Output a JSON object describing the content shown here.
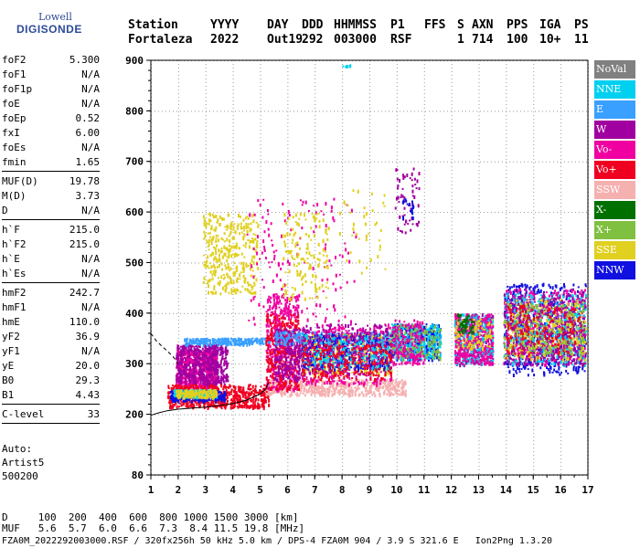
{
  "logo": {
    "line1": "Lowell",
    "line2": "DIGISONDE"
  },
  "header": {
    "row1": [
      "Station",
      "YYYY",
      "DAY",
      "DDD",
      "HHMMSS",
      "P1",
      "FFS",
      "S",
      "AXN",
      "PPS",
      "IGA",
      "PS"
    ],
    "row2": [
      "Fortaleza",
      "2022",
      "Out19",
      "292",
      "003000",
      "RSF",
      "",
      "1",
      "714",
      "100",
      "10+",
      "11"
    ]
  },
  "params_group1": [
    {
      "label": "foF2",
      "value": "5.300"
    },
    {
      "label": "foF1",
      "value": "N/A"
    },
    {
      "label": "foF1p",
      "value": "N/A"
    },
    {
      "label": "foE",
      "value": "N/A"
    },
    {
      "label": "foEp",
      "value": "0.52"
    },
    {
      "label": "fxI",
      "value": "6.00"
    },
    {
      "label": "foEs",
      "value": "N/A"
    },
    {
      "label": "fmin",
      "value": "1.65"
    }
  ],
  "params_group2": [
    {
      "label": "MUF(D)",
      "value": "19.78"
    },
    {
      "label": "M(D)",
      "value": "3.73"
    },
    {
      "label": "D",
      "value": "N/A"
    }
  ],
  "params_group3": [
    {
      "label": "h`F",
      "value": "215.0"
    },
    {
      "label": "h`F2",
      "value": "215.0"
    },
    {
      "label": "h`E",
      "value": "N/A"
    },
    {
      "label": "h`Es",
      "value": "N/A"
    }
  ],
  "params_group4": [
    {
      "label": "hmF2",
      "value": "242.7"
    },
    {
      "label": "hmF1",
      "value": "N/A"
    },
    {
      "label": "hmE",
      "value": "110.0"
    },
    {
      "label": "yF2",
      "value": "36.9"
    },
    {
      "label": "yF1",
      "value": "N/A"
    },
    {
      "label": "yE",
      "value": "20.0"
    },
    {
      "label": "B0",
      "value": "29.3"
    },
    {
      "label": "B1",
      "value": "4.43"
    }
  ],
  "params_group5": [
    {
      "label": "C-level",
      "value": "33"
    }
  ],
  "auto": {
    "line1": "Auto:",
    "line2": "Artist5",
    "line3": "500200"
  },
  "bottom": {
    "d_row": "D     100  200  400  600  800 1000 1500 3000 [km]",
    "muf_row": "MUF   5.6  5.7  6.0  6.6  7.3  8.4 11.5 19.8 [MHz]",
    "file_row": "FZA0M_2022292003000.RSF / 320fx256h 50 kHz 5.0 km / DPS-4 FZA0M 904 / 3.9 S 321.6 E   Ion2Png 1.3.20"
  },
  "legend": [
    {
      "label": "NoVal",
      "color": "#808080"
    },
    {
      "label": "NNE",
      "color": "#00d0f0"
    },
    {
      "label": "E",
      "color": "#3aa0ff"
    },
    {
      "label": "W",
      "color": "#a000a0"
    },
    {
      "label": "Vo-",
      "color": "#f000a0"
    },
    {
      "label": "Vo+",
      "color": "#f00020"
    },
    {
      "label": "SSW",
      "color": "#f5b0b0"
    },
    {
      "label": "X-",
      "color": "#007000"
    },
    {
      "label": "X+",
      "color": "#80c040"
    },
    {
      "label": "SSE",
      "color": "#e0d020"
    },
    {
      "label": "NNW",
      "color": "#1010e0"
    }
  ],
  "chart_data": {
    "type": "scatter",
    "title": "",
    "xlabel": "",
    "ylabel": "",
    "xlim": [
      1,
      17
    ],
    "ylim": [
      80,
      900
    ],
    "x_ticks": [
      1,
      2,
      3,
      4,
      5,
      6,
      7,
      8,
      9,
      10,
      11,
      12,
      13,
      14,
      15,
      16,
      17
    ],
    "y_ticks": [
      80,
      200,
      300,
      400,
      500,
      600,
      700,
      800,
      900
    ],
    "grid": true,
    "trace_profile": {
      "x": [
        1.0,
        1.3,
        1.6,
        2.0,
        2.5,
        3.0,
        3.5,
        4.0,
        4.5,
        5.0,
        5.2,
        5.3
      ],
      "y": [
        198,
        203,
        207,
        210,
        212,
        214,
        217,
        221,
        228,
        240,
        250,
        262
      ]
    },
    "upper_profile": {
      "x": [
        1.0,
        1.2,
        1.5,
        1.8,
        2.0
      ],
      "y": [
        360,
        345,
        330,
        315,
        300
      ]
    },
    "clusters": [
      {
        "color": "#f000a0",
        "x": [
          1.9,
          3.4
        ],
        "y": [
          255,
          330
        ],
        "n": 600
      },
      {
        "color": "#a000a0",
        "x": [
          1.9,
          3.8
        ],
        "y": [
          260,
          340
        ],
        "n": 500
      },
      {
        "color": "#f00020",
        "x": [
          1.6,
          5.3
        ],
        "y": [
          215,
          260
        ],
        "n": 550
      },
      {
        "color": "#1010e0",
        "x": [
          1.7,
          3.7
        ],
        "y": [
          228,
          248
        ],
        "n": 250
      },
      {
        "color": "#00d0f0",
        "x": [
          1.8,
          3.4
        ],
        "y": [
          236,
          250
        ],
        "n": 200
      },
      {
        "color": "#e0d020",
        "x": [
          1.9,
          3.4
        ],
        "y": [
          235,
          250
        ],
        "n": 160
      },
      {
        "color": "#3aa0ff",
        "x": [
          2.2,
          5.7
        ],
        "y": [
          340,
          352
        ],
        "n": 260
      },
      {
        "color": "#f5b0b0",
        "x": [
          5.2,
          10.3
        ],
        "y": [
          240,
          270
        ],
        "n": 500
      },
      {
        "color": "#e0d020",
        "x": [
          2.9,
          4.9
        ],
        "y": [
          440,
          600
        ],
        "n": 350
      },
      {
        "color": "#f000a0",
        "x": [
          5.2,
          6.4
        ],
        "y": [
          250,
          440
        ],
        "n": 400
      },
      {
        "color": "#f00020",
        "x": [
          5.2,
          6.4
        ],
        "y": [
          250,
          400
        ],
        "n": 300
      },
      {
        "color": "#a000a0",
        "x": [
          5.5,
          6.6
        ],
        "y": [
          270,
          370
        ],
        "n": 250
      },
      {
        "color": "#3aa0ff",
        "x": [
          5.5,
          9.8
        ],
        "y": [
          340,
          365
        ],
        "n": 300
      },
      {
        "color": "#f000a0",
        "x": [
          6.5,
          9.8
        ],
        "y": [
          260,
          380
        ],
        "n": 450
      },
      {
        "color": "#e0d020",
        "x": [
          6.5,
          9.8
        ],
        "y": [
          280,
          360
        ],
        "n": 350
      },
      {
        "color": "#1010e0",
        "x": [
          6.5,
          9.8
        ],
        "y": [
          290,
          360
        ],
        "n": 300
      },
      {
        "color": "#00d0f0",
        "x": [
          6.5,
          9.8
        ],
        "y": [
          290,
          360
        ],
        "n": 250
      },
      {
        "color": "#a000a0",
        "x": [
          6.5,
          9.8
        ],
        "y": [
          280,
          380
        ],
        "n": 250
      },
      {
        "color": "#f00020",
        "x": [
          6.5,
          9.8
        ],
        "y": [
          270,
          340
        ],
        "n": 200
      },
      {
        "color": "#1010e0",
        "x": [
          9.8,
          11.6
        ],
        "y": [
          310,
          380
        ],
        "n": 350
      },
      {
        "color": "#00d0f0",
        "x": [
          9.8,
          11.6
        ],
        "y": [
          310,
          380
        ],
        "n": 250
      },
      {
        "color": "#80c040",
        "x": [
          9.8,
          11.6
        ],
        "y": [
          310,
          380
        ],
        "n": 150
      },
      {
        "color": "#f000a0",
        "x": [
          9.8,
          11.0
        ],
        "y": [
          300,
          390
        ],
        "n": 150
      },
      {
        "color": "#a000a0",
        "x": [
          12.1,
          13.5
        ],
        "y": [
          300,
          400
        ],
        "n": 300
      },
      {
        "color": "#00d0f0",
        "x": [
          12.1,
          13.5
        ],
        "y": [
          300,
          400
        ],
        "n": 300
      },
      {
        "color": "#f000a0",
        "x": [
          12.1,
          13.5
        ],
        "y": [
          300,
          400
        ],
        "n": 300
      },
      {
        "color": "#e0d020",
        "x": [
          12.1,
          13.5
        ],
        "y": [
          330,
          390
        ],
        "n": 100
      },
      {
        "color": "#007000",
        "x": [
          12.2,
          12.8
        ],
        "y": [
          360,
          400
        ],
        "n": 50
      },
      {
        "color": "#1010e0",
        "x": [
          13.9,
          16.9
        ],
        "y": [
          280,
          460
        ],
        "n": 550
      },
      {
        "color": "#f000a0",
        "x": [
          13.9,
          16.9
        ],
        "y": [
          300,
          450
        ],
        "n": 500
      },
      {
        "color": "#00d0f0",
        "x": [
          13.9,
          16.9
        ],
        "y": [
          300,
          440
        ],
        "n": 450
      },
      {
        "color": "#a000a0",
        "x": [
          13.9,
          16.9
        ],
        "y": [
          300,
          440
        ],
        "n": 400
      },
      {
        "color": "#e0d020",
        "x": [
          13.9,
          16.9
        ],
        "y": [
          310,
          430
        ],
        "n": 250
      },
      {
        "color": "#80c040",
        "x": [
          13.9,
          16.9
        ],
        "y": [
          320,
          420
        ],
        "n": 150
      },
      {
        "color": "#f00020",
        "x": [
          14.0,
          16.8
        ],
        "y": [
          320,
          420
        ],
        "n": 150
      },
      {
        "color": "#f000a0",
        "x": [
          4.5,
          8.5
        ],
        "y": [
          380,
          630
        ],
        "n": 150
      },
      {
        "color": "#e0d020",
        "x": [
          5.8,
          7.5
        ],
        "y": [
          430,
          600
        ],
        "n": 150
      },
      {
        "color": "#a000a0",
        "x": [
          9.9,
          10.8
        ],
        "y": [
          560,
          690
        ],
        "n": 60
      },
      {
        "color": "#1010e0",
        "x": [
          10.2,
          10.6
        ],
        "y": [
          590,
          630
        ],
        "n": 20
      },
      {
        "color": "#e0d020",
        "x": [
          7.8,
          9.6
        ],
        "y": [
          480,
          650
        ],
        "n": 40
      },
      {
        "color": "#00d0f0",
        "x": [
          8.0,
          8.3
        ],
        "y": [
          887,
          893
        ],
        "n": 8
      }
    ]
  }
}
